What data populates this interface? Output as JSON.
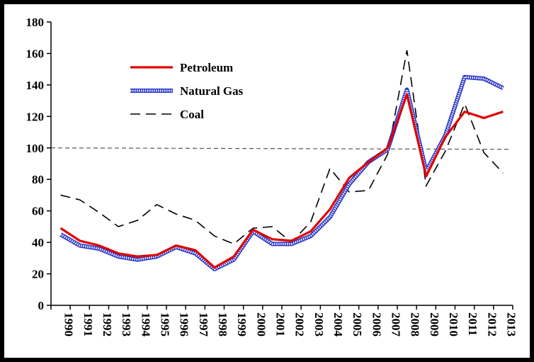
{
  "chart_data": {
    "type": "line",
    "title": "",
    "xlabel": "",
    "ylabel": "",
    "ylim": [
      0,
      180
    ],
    "yticks": [
      0,
      20,
      40,
      60,
      80,
      100,
      120,
      140,
      160,
      180
    ],
    "reference_line": 100,
    "legend_position": "top-left",
    "grid": false,
    "categories": [
      "1990",
      "1991",
      "1992",
      "1993",
      "1994",
      "1995",
      "1996",
      "1997",
      "1998",
      "1999",
      "2000",
      "2001",
      "2002",
      "2003",
      "2004",
      "2005",
      "2006",
      "2007",
      "2008",
      "2009",
      "2010",
      "2011",
      "2012",
      "2013"
    ],
    "series": [
      {
        "name": "Petroleum",
        "style": "solid",
        "color": "#e00000",
        "values": [
          49,
          41,
          38,
          33,
          31,
          32,
          38,
          35,
          24,
          31,
          48,
          42,
          41,
          47,
          61,
          81,
          91,
          100,
          134,
          82,
          107,
          123,
          119,
          123
        ]
      },
      {
        "name": "Natural Gas",
        "style": "dotted-double",
        "color": "#2a36c8",
        "values": [
          45,
          38,
          36,
          31,
          29,
          31,
          37,
          33,
          23,
          29,
          47,
          39,
          39,
          44,
          56,
          77,
          91,
          99,
          137,
          85,
          108,
          145,
          144,
          138
        ]
      },
      {
        "name": "Coal",
        "style": "dashed",
        "color": "#000000",
        "values": [
          70,
          67,
          59,
          50,
          54,
          64,
          58,
          54,
          44,
          39,
          49,
          50,
          40,
          53,
          87,
          72,
          73,
          96,
          162,
          76,
          98,
          128,
          97,
          84
        ]
      }
    ]
  }
}
